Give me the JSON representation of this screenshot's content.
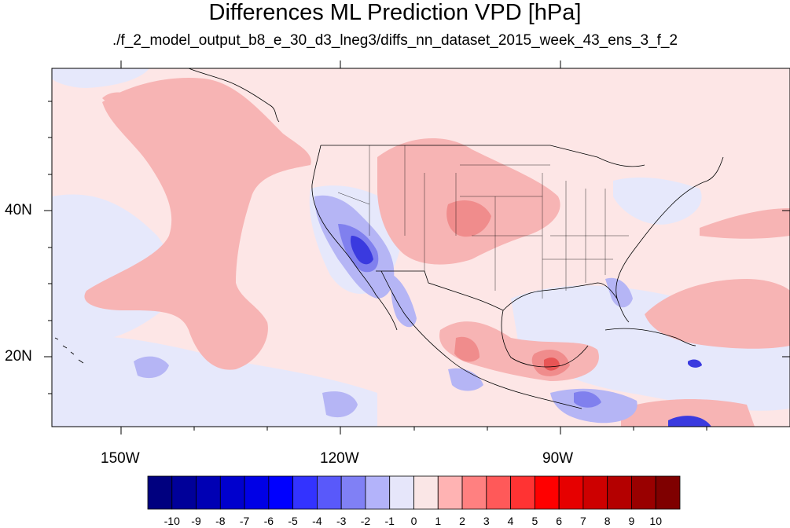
{
  "title": "Differences ML Prediction VPD [hPa]",
  "subtitle": "./f_2_model_output_b8_e_30_d3_lneg3/diffs_nn_dataset_2015_week_43_ens_3_f_2",
  "axes": {
    "lon_ticks": [
      "150W",
      "120W",
      "90W"
    ],
    "lat_ticks": [
      "40N",
      "20N"
    ]
  },
  "colorbar": {
    "labels": [
      "-10",
      "-9",
      "-8",
      "-7",
      "-6",
      "-5",
      "-4",
      "-3",
      "-2",
      "-1",
      "0",
      "1",
      "2",
      "3",
      "4",
      "5",
      "6",
      "7",
      "8",
      "9",
      "10"
    ],
    "colors": [
      "#00007f",
      "#000099",
      "#0000b4",
      "#0000cd",
      "#0000e6",
      "#0000ff",
      "#3333ff",
      "#5959fa",
      "#8080f5",
      "#b3b3fa",
      "#e6e6fa",
      "#fae6e6",
      "#ffb3b3",
      "#ff8080",
      "#ff5959",
      "#ff3333",
      "#ff0000",
      "#e60000",
      "#cd0000",
      "#b40000",
      "#990000",
      "#7f0000"
    ]
  },
  "palette": {
    "base_pink": "#fde6e6",
    "light_blue": "#e6e8fb",
    "mid_red": "#f7b4b4",
    "red": "#f08c8c",
    "strong_red": "#e85555",
    "mid_blue": "#b5b5f5",
    "blue": "#8080ee",
    "deep_blue": "#3a3adf"
  }
}
